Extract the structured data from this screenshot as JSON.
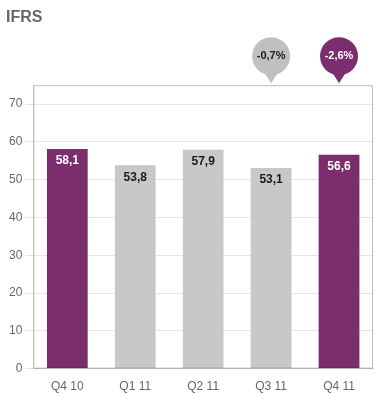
{
  "chart_data": {
    "type": "bar",
    "title": "IFRS",
    "categories": [
      "Q4 10",
      "Q1 11",
      "Q2 11",
      "Q3 11",
      "Q4 11"
    ],
    "values": [
      58.1,
      53.8,
      57.9,
      53.1,
      56.6
    ],
    "value_labels": [
      "58,1",
      "53,8",
      "57,9",
      "53,1",
      "56,6"
    ],
    "colors": [
      "#7B2D6E",
      "#C8C8C8",
      "#C8C8C8",
      "#C8C8C8",
      "#7B2D6E"
    ],
    "data_labels": true,
    "ylim": [
      0,
      75
    ],
    "yticks": [
      0,
      10,
      20,
      30,
      40,
      50,
      60,
      70
    ],
    "grid": true,
    "annotations": [
      {
        "text": "-0,7%",
        "category": "Q3 11",
        "color": "#c0c0c0"
      },
      {
        "text": "-2,6%",
        "category": "Q4 11",
        "color": "#7B2D6E"
      }
    ]
  }
}
